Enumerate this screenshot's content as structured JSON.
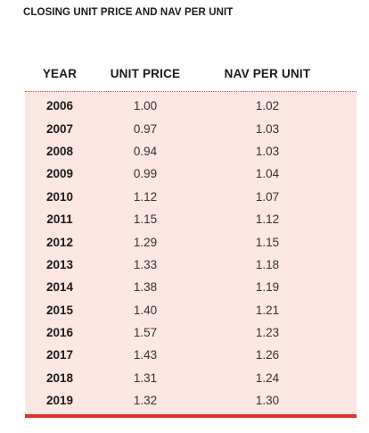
{
  "title": "CLOSING UNIT PRICE AND NAV PER UNIT",
  "headers": {
    "year": "YEAR",
    "unit_price": "UNIT PRICE",
    "nav": "NAV PER UNIT"
  },
  "rows": [
    {
      "year": "2006",
      "unit_price": "1.00",
      "nav": "1.02"
    },
    {
      "year": "2007",
      "unit_price": "0.97",
      "nav": "1.03"
    },
    {
      "year": "2008",
      "unit_price": "0.94",
      "nav": "1.03"
    },
    {
      "year": "2009",
      "unit_price": "0.99",
      "nav": "1.04"
    },
    {
      "year": "2010",
      "unit_price": "1.12",
      "nav": "1.07"
    },
    {
      "year": "2011",
      "unit_price": "1.15",
      "nav": "1.12"
    },
    {
      "year": "2012",
      "unit_price": "1.29",
      "nav": "1.15"
    },
    {
      "year": "2013",
      "unit_price": "1.33",
      "nav": "1.18"
    },
    {
      "year": "2014",
      "unit_price": "1.38",
      "nav": "1.19"
    },
    {
      "year": "2015",
      "unit_price": "1.40",
      "nav": "1.21"
    },
    {
      "year": "2016",
      "unit_price": "1.57",
      "nav": "1.23"
    },
    {
      "year": "2017",
      "unit_price": "1.43",
      "nav": "1.26"
    },
    {
      "year": "2018",
      "unit_price": "1.31",
      "nav": "1.24"
    },
    {
      "year": "2019",
      "unit_price": "1.32",
      "nav": "1.30"
    }
  ],
  "colors": {
    "row_background": "#fde7e3",
    "accent": "#e52d2d"
  }
}
